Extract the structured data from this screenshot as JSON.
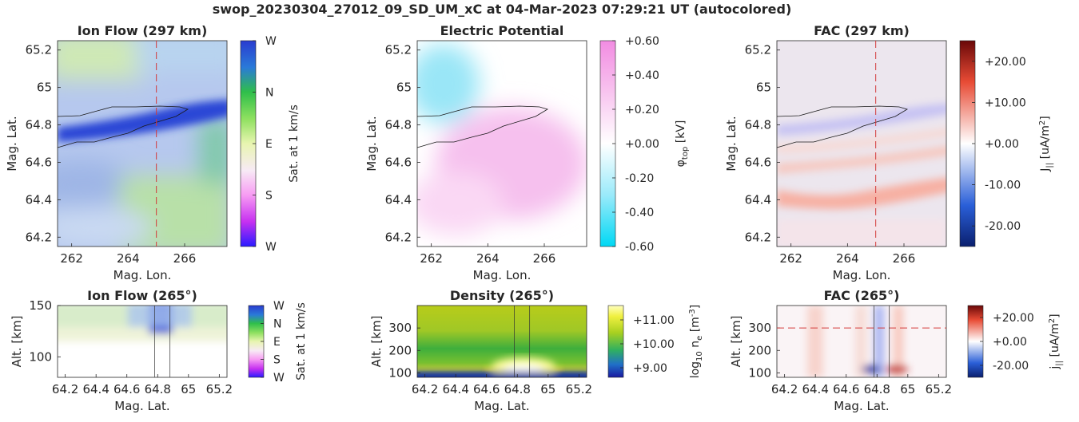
{
  "title": "swop_20230304_27012_09_SD_UM_xC at 04-Mar-2023 07:29:21 UT (autocolored)",
  "chart_data": [
    {
      "id": "ion-flow-map",
      "type": "heatmap",
      "title": "Ion Flow (297 km)",
      "xlabel": "Mag. Lon.",
      "ylabel": "Mag. Lat.",
      "xlim": [
        261.5,
        267.5
      ],
      "ylim": [
        64.15,
        65.25
      ],
      "xticks": [
        "262",
        "264",
        "266"
      ],
      "yticks": [
        "64.2",
        "64.4",
        "64.6",
        "64.8",
        "65",
        "65.2"
      ],
      "dashed_line": {
        "x": 265
      },
      "colorbar": {
        "label": "Sat. at 1 km/s",
        "ticks": [
          "W",
          "N",
          "E",
          "S",
          "W"
        ],
        "colors": [
          "#2a1bff",
          "#e83dd8",
          "#f7a0f5",
          "#ffffff",
          "#c8ef9e",
          "#35d636",
          "#1e9a4a",
          "#2a5ae0",
          "#2a3cd0"
        ]
      }
    },
    {
      "id": "electric-potential-map",
      "type": "heatmap",
      "title": "Electric Potential",
      "xlabel": "Mag. Lon.",
      "ylabel": "Mag. Lat.",
      "xlim": [
        261.5,
        267.5
      ],
      "ylim": [
        64.15,
        65.25
      ],
      "xticks": [
        "262",
        "264",
        "266"
      ],
      "yticks": [
        "64.2",
        "64.4",
        "64.6",
        "64.8",
        "65",
        "65.2"
      ],
      "colorbar": {
        "label": "φ_top [kV]",
        "ticks": [
          "+0.60",
          "+0.40",
          "+0.20",
          "+0.00",
          "-0.20",
          "-0.40",
          "-0.60"
        ],
        "range": [
          -0.6,
          0.6
        ],
        "colors": [
          "#00d8f4",
          "#8fe9fb",
          "#ffffff",
          "#f6b8ee",
          "#f08ae0"
        ]
      }
    },
    {
      "id": "fac-map",
      "type": "heatmap",
      "title": "FAC (297 km)",
      "xlabel": "Mag. Lon.",
      "ylabel": "Mag. Lat.",
      "xlim": [
        261.5,
        267.5
      ],
      "ylim": [
        64.15,
        65.25
      ],
      "xticks": [
        "262",
        "264",
        "266"
      ],
      "yticks": [
        "64.2",
        "64.4",
        "64.6",
        "64.8",
        "65",
        "65.2"
      ],
      "dashed_line": {
        "x": 265
      },
      "colorbar": {
        "label": "J|| [uA/m²]",
        "ticks": [
          "+20.00",
          "+10.00",
          "+0.00",
          "-10.00",
          "-20.00"
        ],
        "range": [
          -25,
          25
        ],
        "colors": [
          "#0a1f6e",
          "#2a5fd8",
          "#ffffff",
          "#e84b35",
          "#6a0808"
        ]
      }
    },
    {
      "id": "ion-flow-profile",
      "type": "heatmap",
      "title": "Ion Flow (265°)",
      "xlabel": "Mag. Lat.",
      "ylabel": "Alt. [km]",
      "xlim": [
        64.15,
        65.25
      ],
      "ylim": [
        80,
        150
      ],
      "xticks": [
        "64.2",
        "64.4",
        "64.6",
        "64.8",
        "65",
        "65.2"
      ],
      "yticks": [
        "100",
        "150"
      ],
      "vertical_lines": [
        64.78,
        64.88
      ],
      "colorbar": {
        "label": "Sat. at 1 km/s",
        "ticks": [
          "W",
          "N",
          "E",
          "S",
          "W"
        ]
      }
    },
    {
      "id": "density-profile",
      "type": "heatmap",
      "title": "Density (265°)",
      "xlabel": "Mag. Lat.",
      "ylabel": "Alt. [km]",
      "xlim": [
        64.15,
        65.25
      ],
      "ylim": [
        80,
        400
      ],
      "xticks": [
        "64.2",
        "64.4",
        "64.6",
        "64.8",
        "65",
        "65.2"
      ],
      "yticks": [
        "100",
        "200",
        "300"
      ],
      "vertical_lines": [
        64.78,
        64.88
      ],
      "colorbar": {
        "label": "log10 ne [m-3]",
        "ticks": [
          "+11.00",
          "+10.00",
          "+9.00"
        ],
        "range": [
          8.6,
          11.6
        ],
        "colors": [
          "#1a1aa0",
          "#2070c8",
          "#30b060",
          "#a8d020",
          "#f0f040",
          "#ffffa0"
        ]
      }
    },
    {
      "id": "fac-profile",
      "type": "heatmap",
      "title": "FAC (265°)",
      "xlabel": "Mag. Lat.",
      "ylabel": "Alt. [km]",
      "xlim": [
        64.15,
        65.25
      ],
      "ylim": [
        80,
        400
      ],
      "xticks": [
        "64.2",
        "64.4",
        "64.6",
        "64.8",
        "65",
        "65.2"
      ],
      "yticks": [
        "100",
        "200",
        "300"
      ],
      "vertical_lines": [
        64.78,
        64.88
      ],
      "dashed_line": {
        "y": 300
      },
      "colorbar": {
        "label": "j|| [uA/m²]",
        "ticks": [
          "+20.00",
          "+0.00",
          "-20.00"
        ],
        "range": [
          -30,
          30
        ]
      }
    }
  ]
}
